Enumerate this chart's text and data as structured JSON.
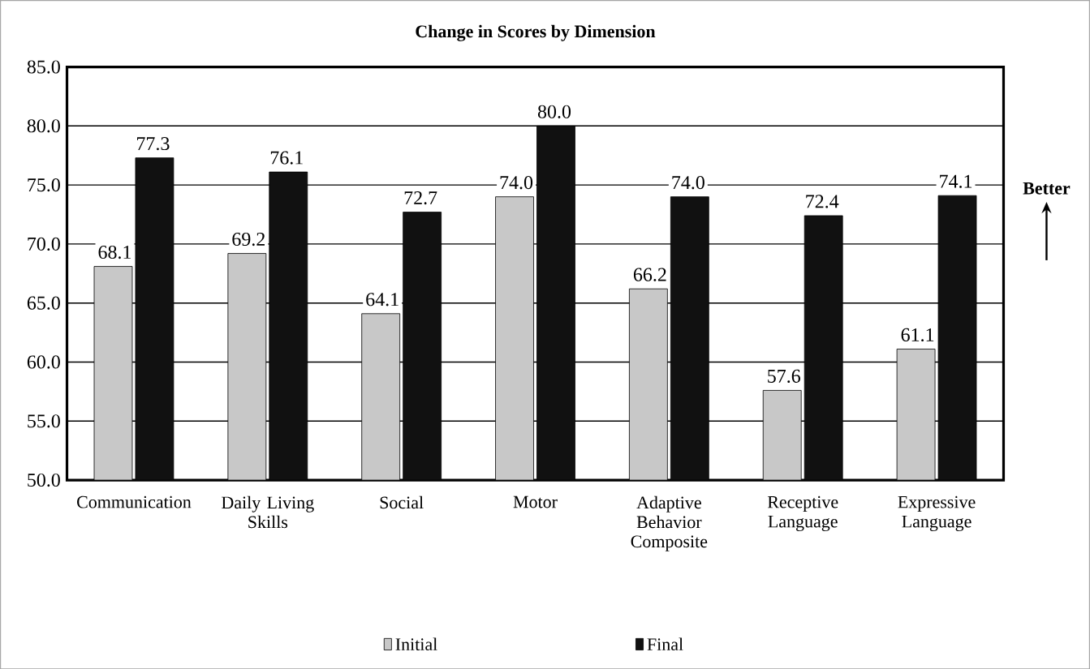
{
  "chart_data": {
    "type": "bar",
    "title": "Change in Scores by Dimension",
    "categories": [
      "Communication",
      "Daily Living Skills",
      "Social",
      "Motor",
      "Adaptive Behavior Composite",
      "Receptive Language",
      "Expressive Language"
    ],
    "series": [
      {
        "name": "Initial",
        "color": "#c8c8c8",
        "values": [
          68.1,
          69.2,
          64.1,
          74.0,
          66.2,
          57.6,
          61.1
        ],
        "value_labels": [
          "68.1",
          "69.2",
          "64.1",
          "74.0",
          "66.2",
          "57.6",
          "61.1"
        ]
      },
      {
        "name": "Final",
        "color": "#111111",
        "values": [
          77.3,
          76.1,
          72.7,
          80.0,
          74.0,
          72.4,
          74.1
        ],
        "value_labels": [
          "77.3",
          "76.1",
          "72.7",
          "80.0",
          "74.0",
          "72.4",
          "74.1"
        ]
      }
    ],
    "ylim": [
      50,
      85
    ],
    "yticks": [
      {
        "value": 50,
        "label": "50.0"
      },
      {
        "value": 55,
        "label": "55.0"
      },
      {
        "value": 60,
        "label": "60.0"
      },
      {
        "value": 65,
        "label": "65.0"
      },
      {
        "value": 70,
        "label": "70.0"
      },
      {
        "value": 75,
        "label": "75.0"
      },
      {
        "value": 80,
        "label": "80.0"
      },
      {
        "value": 85,
        "label": "85.0"
      }
    ],
    "grid": "y",
    "legend": "bottom",
    "annotations": [
      "Better"
    ]
  }
}
